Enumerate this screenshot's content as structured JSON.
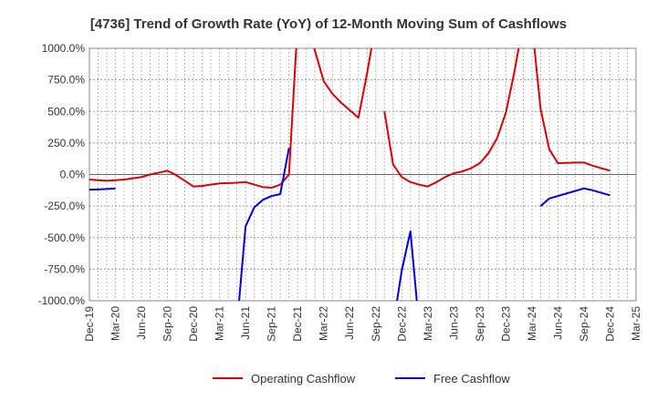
{
  "chart_data": {
    "type": "line",
    "title": "[4736]  Trend of Growth Rate (YoY) of 12-Month Moving Sum of Cashflows",
    "xlabel": "",
    "ylabel": "",
    "ylim": [
      -1000,
      1000
    ],
    "y_ticks": [
      1000,
      750,
      500,
      250,
      0,
      -250,
      -500,
      -750,
      -1000
    ],
    "y_tick_labels": [
      "1000.0%",
      "750.0%",
      "500.0%",
      "250.0%",
      "0.0%",
      "-250.0%",
      "-500.0%",
      "-750.0%",
      "-1000.0%"
    ],
    "x_tick_labels": [
      "Dec-19",
      "Mar-20",
      "Jun-20",
      "Sep-20",
      "Dec-20",
      "Mar-21",
      "Jun-21",
      "Sep-21",
      "Dec-21",
      "Mar-22",
      "Jun-22",
      "Sep-22",
      "Dec-22",
      "Mar-23",
      "Jun-23",
      "Sep-23",
      "Dec-23",
      "Mar-24",
      "Jun-24",
      "Sep-24",
      "Dec-24",
      "Mar-25"
    ],
    "grid": true,
    "legend_position": "bottom",
    "series": [
      {
        "name": "Operating Cashflow",
        "color": "#e00000",
        "points": [
          [
            "2019-12",
            -40
          ],
          [
            "2020-01",
            -45
          ],
          [
            "2020-02",
            -50
          ],
          [
            "2020-03",
            -45
          ],
          [
            "2020-04",
            -40
          ],
          [
            "2020-05",
            -30
          ],
          [
            "2020-06",
            -20
          ],
          [
            "2020-07",
            0
          ],
          [
            "2020-08",
            15
          ],
          [
            "2020-09",
            30
          ],
          [
            "2020-10",
            -5
          ],
          [
            "2020-11",
            -50
          ],
          [
            "2020-12",
            -95
          ],
          [
            "2021-01",
            -90
          ],
          [
            "2021-02",
            -80
          ],
          [
            "2021-03",
            -70
          ],
          [
            "2021-04",
            -68
          ],
          [
            "2021-05",
            -65
          ],
          [
            "2021-06",
            -60
          ],
          [
            "2021-07",
            -80
          ],
          [
            "2021-08",
            -100
          ],
          [
            "2021-09",
            -105
          ],
          [
            "2021-10",
            -80
          ],
          [
            "2021-11",
            0
          ],
          [
            "2021-12",
            1200
          ],
          null,
          [
            "2022-01",
            1200
          ],
          [
            "2022-02",
            980
          ],
          [
            "2022-03",
            740
          ],
          [
            "2022-04",
            640
          ],
          [
            "2022-05",
            570
          ],
          [
            "2022-06",
            510
          ],
          [
            "2022-07",
            450
          ],
          [
            "2022-08",
            800
          ],
          [
            "2022-09",
            1200
          ],
          null,
          [
            "2022-10",
            500
          ],
          [
            "2022-11",
            80
          ],
          [
            "2022-12",
            -20
          ],
          [
            "2023-01",
            -60
          ],
          [
            "2023-02",
            -80
          ],
          [
            "2023-03",
            -95
          ],
          [
            "2023-04",
            -60
          ],
          [
            "2023-05",
            -20
          ],
          [
            "2023-06",
            10
          ],
          [
            "2023-07",
            25
          ],
          [
            "2023-08",
            50
          ],
          [
            "2023-09",
            90
          ],
          [
            "2023-10",
            170
          ],
          [
            "2023-11",
            290
          ],
          [
            "2023-12",
            490
          ],
          [
            "2024-01",
            820
          ],
          [
            "2024-02",
            1200
          ],
          null,
          [
            "2024-03",
            1200
          ],
          [
            "2024-04",
            520
          ],
          [
            "2024-05",
            200
          ],
          [
            "2024-06",
            90
          ],
          [
            "2024-07",
            92
          ],
          [
            "2024-08",
            95
          ],
          [
            "2024-09",
            95
          ],
          [
            "2024-10",
            70
          ],
          [
            "2024-11",
            50
          ],
          [
            "2024-12",
            30
          ]
        ]
      },
      {
        "name": "Free Cashflow",
        "color": "#0000e0",
        "points": [
          [
            "2019-12",
            -120
          ],
          [
            "2020-01",
            -118
          ],
          [
            "2020-02",
            -115
          ],
          [
            "2020-03",
            -110
          ],
          null,
          [
            "2021-05",
            -1200
          ],
          [
            "2021-06",
            -410
          ],
          [
            "2021-07",
            -260
          ],
          [
            "2021-08",
            -200
          ],
          [
            "2021-09",
            -170
          ],
          [
            "2021-10",
            -155
          ],
          [
            "2021-11",
            210
          ],
          null,
          [
            "2022-11",
            -1200
          ],
          [
            "2022-12",
            -760
          ],
          [
            "2023-01",
            -450
          ],
          [
            "2023-02",
            -1200
          ],
          null,
          [
            "2024-04",
            -250
          ],
          [
            "2024-05",
            -190
          ],
          [
            "2024-06",
            -170
          ],
          [
            "2024-07",
            -150
          ],
          [
            "2024-08",
            -130
          ],
          [
            "2024-09",
            -110
          ],
          [
            "2024-10",
            -125
          ],
          [
            "2024-11",
            -145
          ],
          [
            "2024-12",
            -165
          ]
        ]
      }
    ]
  }
}
